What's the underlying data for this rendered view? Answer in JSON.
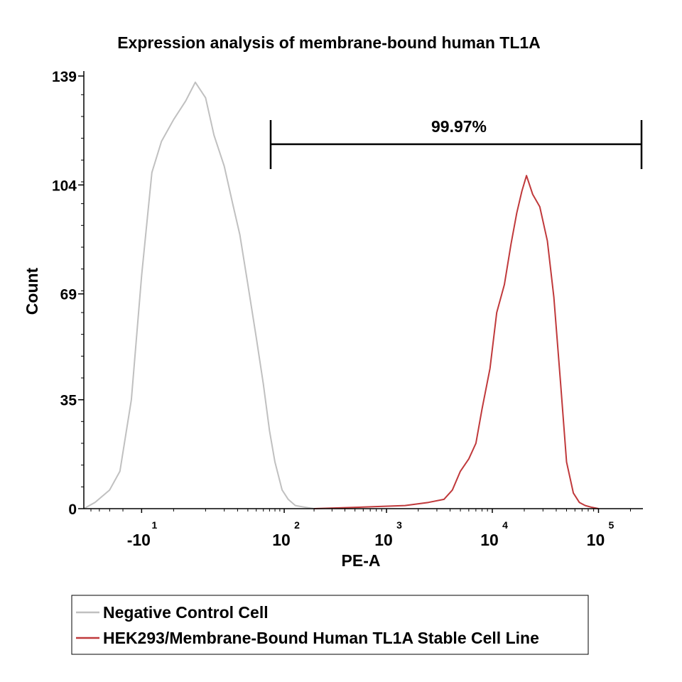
{
  "chart_data": {
    "type": "line",
    "title": "Expression analysis of membrane-bound human TL1A",
    "xlabel": "PE-A",
    "ylabel": "Count",
    "x_scale": "biexponential",
    "y_ticks": [
      "0",
      "35",
      "69",
      "104",
      "139"
    ],
    "ylim": [
      0,
      139
    ],
    "x_tick_labels": [
      {
        "base": "-10",
        "exp": "1",
        "value": -10
      },
      {
        "base": "10",
        "exp": "2",
        "value": 100
      },
      {
        "base": "10",
        "exp": "3",
        "value": 1000
      },
      {
        "base": "10",
        "exp": "4",
        "value": 10000
      },
      {
        "base": "10",
        "exp": "5",
        "value": 100000
      }
    ],
    "gate": {
      "label": "99.97%",
      "x_start": 398,
      "x_end": 262000
    },
    "legend": {
      "placement": "bottom",
      "entries": [
        {
          "name": "Negative Control Cell",
          "color": "#c0c0c0"
        },
        {
          "name": "HEK293/Membrane-Bound Human TL1A Stable Cell Line",
          "color": "#c0393b"
        }
      ]
    },
    "series": [
      {
        "name": "Negative Control Cell",
        "color": "#c0c0c0",
        "x": [
          -60,
          -45,
          -30,
          -22,
          -15,
          -10,
          -6,
          -3,
          0,
          3,
          6,
          10,
          14,
          20,
          26,
          32,
          40,
          50,
          60,
          70,
          80,
          95,
          110,
          130,
          160,
          200
        ],
        "y": [
          0,
          2,
          6,
          12,
          35,
          75,
          108,
          118,
          125,
          131,
          137,
          132,
          120,
          110,
          98,
          88,
          72,
          55,
          40,
          25,
          15,
          6,
          3,
          1,
          0.5,
          0
        ]
      },
      {
        "name": "HEK293/Membrane-Bound Human TL1A Stable Cell Line",
        "color": "#c0393b",
        "x": [
          200,
          600,
          1500,
          2500,
          3500,
          4200,
          5000,
          6000,
          7000,
          8000,
          9500,
          11000,
          13000,
          15000,
          17000,
          19000,
          21000,
          24000,
          28000,
          33000,
          38000,
          44000,
          50000,
          58000,
          66000,
          75000,
          85000,
          100000
        ],
        "y": [
          0,
          0.5,
          1,
          2,
          3,
          6,
          12,
          16,
          21,
          32,
          45,
          63,
          72,
          85,
          95,
          102,
          107,
          101,
          97,
          86,
          68,
          40,
          15,
          5,
          2,
          1,
          0.5,
          0
        ]
      }
    ]
  }
}
